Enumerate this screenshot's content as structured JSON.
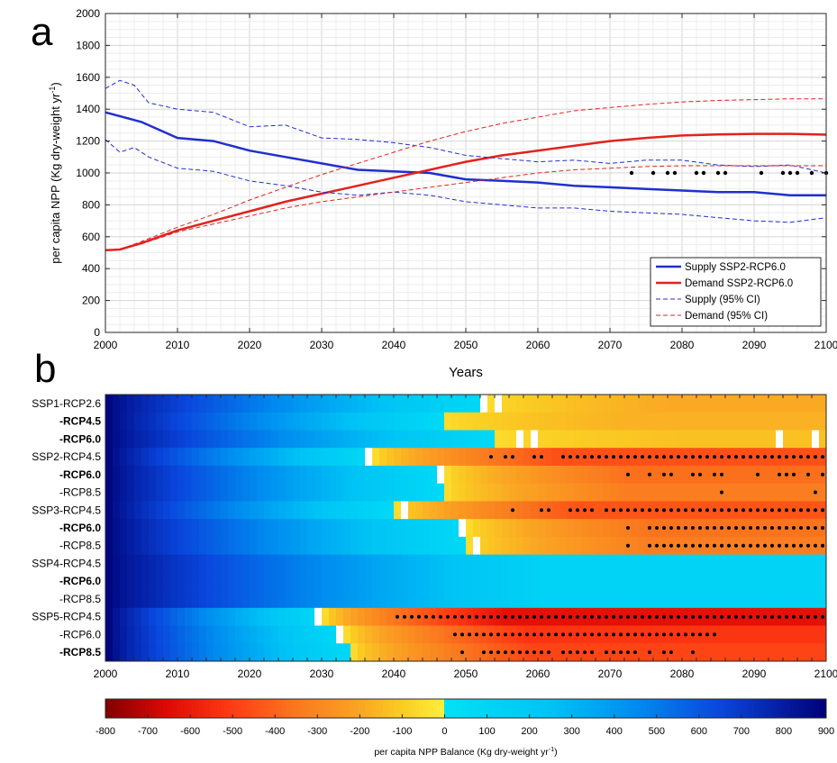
{
  "panel_a": {
    "letter": "a",
    "xlabel": "Years",
    "ylabel": "per capita NPP (Kg dry-weight yr",
    "ylabel_sup": "-1",
    "ylabel_tail": ")",
    "xticks": [
      "2000",
      "2010",
      "2020",
      "2030",
      "2040",
      "2050",
      "2060",
      "2070",
      "2080",
      "2090",
      "2100"
    ],
    "yticks": [
      "0",
      "200",
      "400",
      "600",
      "800",
      "1000",
      "1200",
      "1400",
      "1600",
      "1800",
      "2000"
    ],
    "legend": [
      "Supply SSP2-RCP6.0",
      "Demand SSP2-RCP6.0",
      "Supply (95% CI)",
      "Demand (95% CI)"
    ]
  },
  "panel_b": {
    "letter": "b",
    "xticks": [
      "2000",
      "2010",
      "2020",
      "2030",
      "2040",
      "2050",
      "2060",
      "2070",
      "2080",
      "2090",
      "2100"
    ],
    "rows": [
      "SSP1-RCP2.6",
      "-RCP4.5",
      "-RCP6.0",
      "SSP2-RCP4.5",
      "-RCP6.0",
      "-RCP8.5",
      "SSP3-RCP4.5",
      "-RCP6.0",
      "-RCP8.5",
      "SSP4-RCP4.5",
      "-RCP6.0",
      "-RCP8.5",
      "SSP5-RCP4.5",
      "-RCP6.0",
      "-RCP8.5"
    ],
    "bold_rows": [
      1,
      2,
      4,
      7,
      10,
      14
    ]
  },
  "colorbar": {
    "ticks": [
      "-800",
      "-700",
      "-600",
      "-500",
      "-400",
      "-300",
      "-200",
      "-100",
      "0",
      "100",
      "200",
      "300",
      "400",
      "500",
      "600",
      "700",
      "800",
      "900"
    ],
    "label": "per capita NPP Balance (Kg dry-weight yr",
    "label_sup": "-1",
    "label_tail": ")"
  },
  "colors": {
    "supply": "#1f2fd0",
    "demand": "#e3221e"
  },
  "chart_data": [
    {
      "type": "line",
      "xlim": [
        2000,
        2100
      ],
      "ylim": [
        0,
        2000
      ],
      "grid": true,
      "legend_position": "bottom-right",
      "series": [
        {
          "name": "Supply SSP2-RCP6.0",
          "style": "solid",
          "x": [
            2000,
            2005,
            2010,
            2015,
            2020,
            2025,
            2030,
            2035,
            2040,
            2045,
            2050,
            2055,
            2060,
            2065,
            2070,
            2075,
            2080,
            2085,
            2090,
            2095,
            2100
          ],
          "y": [
            1380,
            1320,
            1220,
            1200,
            1140,
            1100,
            1060,
            1020,
            1010,
            1000,
            960,
            950,
            940,
            920,
            910,
            900,
            890,
            880,
            880,
            860,
            860
          ]
        },
        {
          "name": "Demand SSP2-RCP6.0",
          "style": "solid",
          "x": [
            2000,
            2002,
            2005,
            2010,
            2015,
            2020,
            2025,
            2030,
            2035,
            2040,
            2045,
            2050,
            2055,
            2060,
            2065,
            2070,
            2075,
            2080,
            2085,
            2090,
            2095,
            2100
          ],
          "y": [
            515,
            520,
            560,
            640,
            700,
            760,
            820,
            870,
            920,
            970,
            1020,
            1070,
            1110,
            1140,
            1170,
            1200,
            1220,
            1235,
            1242,
            1245,
            1245,
            1240
          ]
        },
        {
          "name": "Supply (95% CI)",
          "style": "dashed",
          "x": [
            2000,
            2002,
            2004,
            2006,
            2010,
            2015,
            2020,
            2025,
            2030,
            2035,
            2040,
            2045,
            2050,
            2055,
            2060,
            2065,
            2070,
            2075,
            2080,
            2085,
            2090,
            2095,
            2100
          ],
          "y": [
            1530,
            1580,
            1550,
            1440,
            1400,
            1380,
            1290,
            1300,
            1220,
            1210,
            1190,
            1160,
            1110,
            1090,
            1070,
            1080,
            1060,
            1080,
            1080,
            1050,
            1040,
            1050,
            1000
          ]
        },
        {
          "name": "Supply (95% CI)",
          "style": "dashed",
          "x": [
            2000,
            2002,
            2004,
            2006,
            2010,
            2015,
            2020,
            2025,
            2030,
            2035,
            2040,
            2045,
            2050,
            2055,
            2060,
            2065,
            2070,
            2075,
            2080,
            2085,
            2090,
            2095,
            2100
          ],
          "y": [
            1210,
            1130,
            1160,
            1100,
            1030,
            1010,
            950,
            920,
            880,
            860,
            880,
            860,
            820,
            800,
            780,
            780,
            760,
            750,
            740,
            720,
            700,
            690,
            720
          ]
        },
        {
          "name": "Demand (95% CI)",
          "style": "dashed",
          "x": [
            2000,
            2002,
            2005,
            2010,
            2015,
            2020,
            2025,
            2030,
            2035,
            2040,
            2045,
            2050,
            2055,
            2060,
            2065,
            2070,
            2075,
            2080,
            2085,
            2090,
            2095,
            2100
          ],
          "y": [
            515,
            520,
            570,
            660,
            740,
            830,
            910,
            990,
            1060,
            1130,
            1200,
            1260,
            1310,
            1350,
            1390,
            1410,
            1430,
            1445,
            1455,
            1460,
            1465,
            1465
          ]
        },
        {
          "name": "Demand (95% CI)",
          "style": "dashed",
          "x": [
            2000,
            2002,
            2005,
            2010,
            2015,
            2020,
            2025,
            2030,
            2035,
            2040,
            2045,
            2050,
            2055,
            2060,
            2065,
            2070,
            2075,
            2080,
            2085,
            2090,
            2095,
            2100
          ],
          "y": [
            515,
            520,
            555,
            630,
            680,
            730,
            780,
            820,
            850,
            880,
            910,
            940,
            970,
            1000,
            1020,
            1030,
            1040,
            1045,
            1045,
            1045,
            1045,
            1045
          ]
        }
      ],
      "markers_y": 1000,
      "markers_x": [
        2073,
        2076,
        2078,
        2079,
        2082,
        2083,
        2085,
        2086,
        2091,
        2094,
        2095,
        2096,
        2098,
        2100
      ]
    },
    {
      "type": "heatmap",
      "x_range": [
        2000,
        2100
      ],
      "value_range": [
        -800,
        900
      ],
      "rows": [
        "SSP1-RCP2.6",
        "-RCP4.5",
        "-RCP6.0",
        "SSP2-RCP4.5",
        "-RCP6.0",
        "-RCP8.5",
        "SSP3-RCP4.5",
        "-RCP6.0",
        "-RCP8.5",
        "SSP4-RCP4.5",
        "-RCP6.0",
        "-RCP8.5",
        "SSP5-RCP4.5",
        "-RCP6.0",
        "-RCP8.5"
      ],
      "row_profiles": [
        {
          "start": 880,
          "cross": 2053,
          "end": -190,
          "white": [
            2052,
            2054
          ]
        },
        {
          "start": 880,
          "cross": 2047,
          "end": -170,
          "white": []
        },
        {
          "start": 880,
          "cross": 2054,
          "end": -130,
          "white": [
            2057,
            2059,
            2093,
            2098
          ]
        },
        {
          "start": 880,
          "cross": 2037,
          "end": -450,
          "white": [
            2036
          ]
        },
        {
          "start": 880,
          "cross": 2047,
          "end": -370,
          "white": [
            2046
          ]
        },
        {
          "start": 880,
          "cross": 2047,
          "end": -330,
          "white": []
        },
        {
          "start": 880,
          "cross": 2040,
          "end": -440,
          "white": [
            2041
          ]
        },
        {
          "start": 880,
          "cross": 2050,
          "end": -360,
          "white": [
            2049
          ]
        },
        {
          "start": 880,
          "cross": 2050,
          "end": -330,
          "white": [
            2051
          ]
        },
        {
          "start": 880,
          "cross": 2120,
          "end": 120,
          "white": []
        },
        {
          "start": 880,
          "cross": 2120,
          "end": 120,
          "white": []
        },
        {
          "start": 880,
          "cross": 2120,
          "end": 120,
          "white": []
        },
        {
          "start": 880,
          "cross": 2030,
          "end": -630,
          "white": [
            2029
          ]
        },
        {
          "start": 880,
          "cross": 2033,
          "end": -520,
          "white": [
            2032
          ]
        },
        {
          "start": 880,
          "cross": 2034,
          "end": -480,
          "white": []
        }
      ],
      "dot_years": [
        [],
        [],
        [],
        [
          2054,
          2056,
          2057,
          2060,
          2061,
          2064,
          2065,
          2066,
          2067,
          2068,
          2069,
          2070,
          2071,
          2072,
          2073,
          2074,
          2075,
          2076,
          2077,
          2078,
          2079,
          2080,
          2081,
          2082,
          2083,
          2084,
          2085,
          2086,
          2087,
          2088,
          2089,
          2090,
          2091,
          2092,
          2093,
          2094,
          2095,
          2096,
          2097,
          2098,
          2099,
          2100
        ],
        [
          2073,
          2076,
          2078,
          2079,
          2082,
          2083,
          2085,
          2086,
          2091,
          2094,
          2095,
          2096,
          2098,
          2100
        ],
        [
          2086,
          2099
        ],
        [
          2057,
          2061,
          2062,
          2065,
          2066,
          2067,
          2068,
          2070,
          2071,
          2072,
          2073,
          2074,
          2075,
          2076,
          2077,
          2078,
          2079,
          2080,
          2081,
          2082,
          2083,
          2084,
          2085,
          2086,
          2087,
          2088,
          2089,
          2090,
          2091,
          2092,
          2093,
          2094,
          2095,
          2096,
          2097,
          2098,
          2099,
          2100
        ],
        [
          2073,
          2076,
          2077,
          2078,
          2079,
          2080,
          2081,
          2082,
          2083,
          2084,
          2085,
          2086,
          2087,
          2088,
          2089,
          2090,
          2091,
          2092,
          2093,
          2094,
          2095,
          2096,
          2097,
          2098,
          2099,
          2100
        ],
        [
          2073,
          2076,
          2077,
          2078,
          2079,
          2080,
          2081,
          2082,
          2083,
          2084,
          2085,
          2086,
          2087,
          2088,
          2089,
          2090,
          2091,
          2092,
          2093,
          2094,
          2095,
          2096,
          2097,
          2098,
          2099,
          2100
        ],
        [],
        [],
        [],
        [
          2041,
          2042,
          2043,
          2044,
          2045,
          2046,
          2047,
          2048,
          2049,
          2050,
          2051,
          2052,
          2053,
          2054,
          2055,
          2056,
          2057,
          2058,
          2059,
          2060,
          2061,
          2062,
          2063,
          2064,
          2065,
          2066,
          2067,
          2068,
          2069,
          2070,
          2071,
          2072,
          2073,
          2074,
          2075,
          2076,
          2077,
          2078,
          2079,
          2080,
          2081,
          2082,
          2083,
          2084,
          2085,
          2086,
          2087,
          2088,
          2089,
          2090,
          2091,
          2092,
          2093,
          2094,
          2095,
          2096,
          2097,
          2098,
          2099,
          2100
        ],
        [
          2049,
          2050,
          2051,
          2052,
          2053,
          2054,
          2055,
          2056,
          2057,
          2058,
          2059,
          2060,
          2061,
          2062,
          2063,
          2064,
          2065,
          2066,
          2067,
          2068,
          2069,
          2070,
          2071,
          2072,
          2073,
          2074,
          2075,
          2076,
          2077,
          2078,
          2079,
          2080,
          2081,
          2082,
          2083,
          2084,
          2085
        ],
        [
          2050,
          2053,
          2054,
          2055,
          2056,
          2057,
          2058,
          2059,
          2060,
          2061,
          2062,
          2064,
          2065,
          2066,
          2067,
          2068,
          2070,
          2071,
          2072,
          2073,
          2074,
          2076,
          2078,
          2079,
          2082
        ]
      ]
    }
  ]
}
